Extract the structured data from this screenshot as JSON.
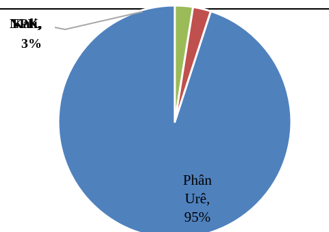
{
  "chart_data": {
    "type": "pie",
    "title": "",
    "categories": [
      "Phân Urê",
      "Kali",
      "NPK"
    ],
    "values": [
      95,
      2.5,
      2.5
    ],
    "colors": [
      "#4F81BD",
      "#C0504D",
      "#9BBB59"
    ],
    "data_labels": {
      "urea": [
        "Phân",
        "Urê,",
        "95%"
      ],
      "small_overlap_a": "NPK,",
      "small_overlap_b": "Kali,",
      "small_percent": "3%"
    },
    "legend": "none",
    "start_angle": "12 o'clock",
    "direction": "counterclockwise"
  }
}
